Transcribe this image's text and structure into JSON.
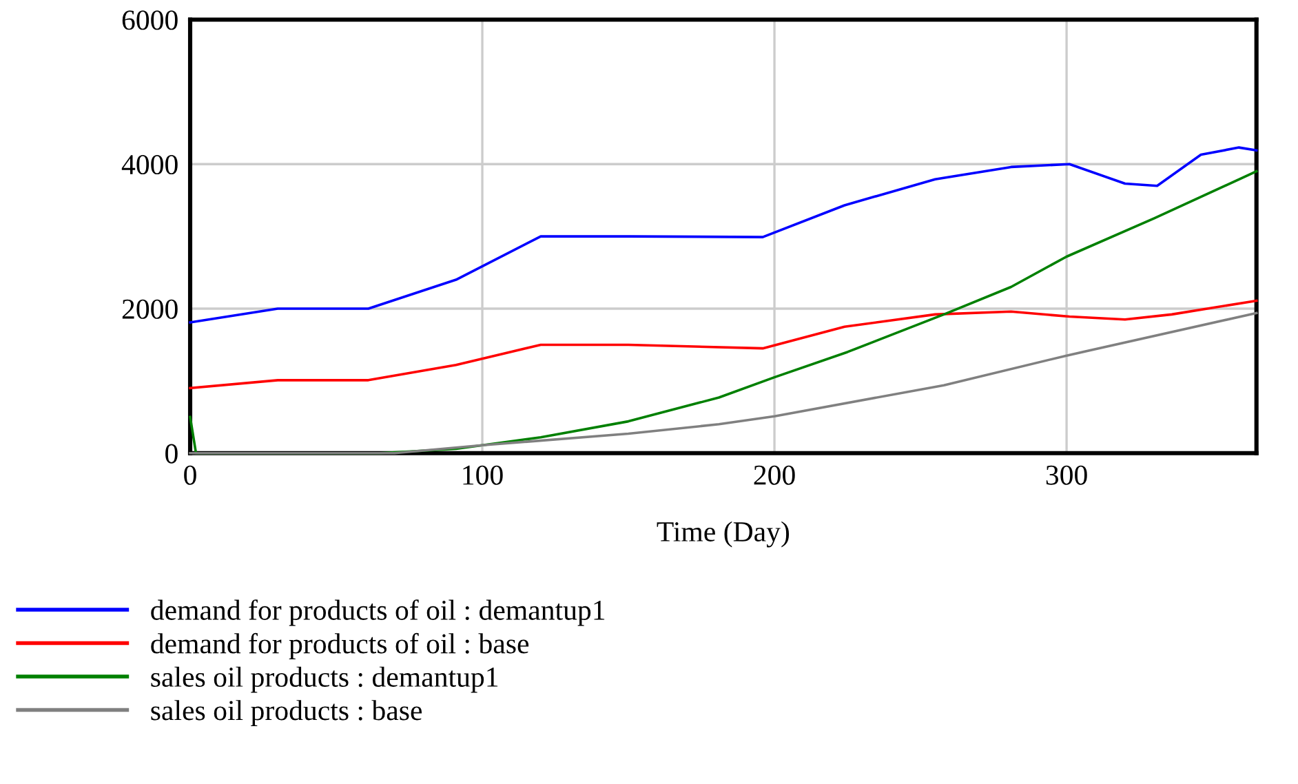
{
  "chart_data": {
    "type": "line",
    "xlabel": "Time (Day)",
    "xlim": [
      0,
      365
    ],
    "ylim": [
      0,
      6000
    ],
    "xticks": [
      0,
      100,
      200,
      300
    ],
    "yticks": [
      0,
      2000,
      4000,
      6000
    ],
    "grid": true,
    "legend": "bottom",
    "line_style": "solid",
    "series": [
      {
        "name": "demand for products of oil : demantup1",
        "color": "#0000ff",
        "x": [
          0,
          30,
          61,
          91,
          120,
          150,
          196,
          224,
          255,
          281,
          301,
          320,
          331,
          346,
          359,
          365
        ],
        "values": [
          1810,
          2000,
          2000,
          2400,
          3000,
          3000,
          2990,
          3430,
          3790,
          3960,
          4000,
          3730,
          3700,
          4130,
          4230,
          4190
        ]
      },
      {
        "name": "demand for products of oil : base",
        "color": "#ff0000",
        "x": [
          0,
          30,
          61,
          91,
          120,
          150,
          196,
          224,
          255,
          281,
          301,
          320,
          336,
          365
        ],
        "values": [
          900,
          1010,
          1010,
          1220,
          1500,
          1500,
          1450,
          1750,
          1920,
          1960,
          1890,
          1850,
          1920,
          2110
        ]
      },
      {
        "name": "sales oil products : demantup1",
        "color": "#008000",
        "x": [
          0,
          2,
          65,
          91,
          120,
          150,
          181,
          200,
          225,
          258,
          281,
          300,
          330,
          365
        ],
        "values": [
          500,
          0,
          0,
          60,
          220,
          440,
          770,
          1050,
          1400,
          1920,
          2300,
          2720,
          3250,
          3900
        ]
      },
      {
        "name": "sales oil products : base",
        "color": "#808080",
        "x": [
          0,
          70,
          100,
          150,
          181,
          200,
          258,
          300,
          365
        ],
        "values": [
          0,
          0,
          110,
          270,
          400,
          510,
          940,
          1350,
          1940
        ]
      }
    ]
  }
}
